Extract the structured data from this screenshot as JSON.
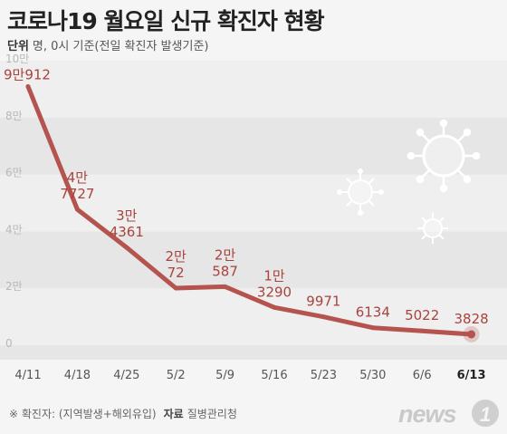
{
  "title": "코로나19 월요일 신규 확진자 현황",
  "unit_label": "단위",
  "unit_text": "명, 0시 기준(전일 확진자 발생기준)",
  "footnote": "※ 확진자: (지역발생+해외유입)",
  "source_label": "자료",
  "source": "질병관리청",
  "logo_text": "news1",
  "colors": {
    "line": "#b5544e",
    "label": "#a8433d",
    "band_light": "#efefef",
    "band_dark": "#e6e6e6",
    "tick": "#b8b8b8"
  },
  "chart_data": {
    "type": "line",
    "title": "코로나19 월요일 신규 확진자 현황",
    "xlabel": "",
    "ylabel": "",
    "ylim": [
      0,
      100000
    ],
    "yticks": [
      {
        "value": 0,
        "label": "0"
      },
      {
        "value": 20000,
        "label": "2만"
      },
      {
        "value": 40000,
        "label": "4만"
      },
      {
        "value": 60000,
        "label": "6만"
      },
      {
        "value": 80000,
        "label": "8만"
      },
      {
        "value": 100000,
        "label": "10만"
      }
    ],
    "categories": [
      "4/11",
      "4/18",
      "4/25",
      "5/2",
      "5/9",
      "5/16",
      "5/23",
      "5/30",
      "6/6",
      "6/13"
    ],
    "values": [
      90912,
      47727,
      34361,
      20072,
      20587,
      13290,
      9971,
      6134,
      5022,
      3828
    ],
    "data_labels": [
      [
        "9만912"
      ],
      [
        "4만",
        "7727"
      ],
      [
        "3만",
        "4361"
      ],
      [
        "2만",
        "72"
      ],
      [
        "2만",
        "587"
      ],
      [
        "1만",
        "3290"
      ],
      [
        "9971"
      ],
      [
        "6134"
      ],
      [
        "5022"
      ],
      [
        "3828"
      ]
    ],
    "highlight_index": 9,
    "grid": "alternating-bands",
    "legend": "none"
  }
}
